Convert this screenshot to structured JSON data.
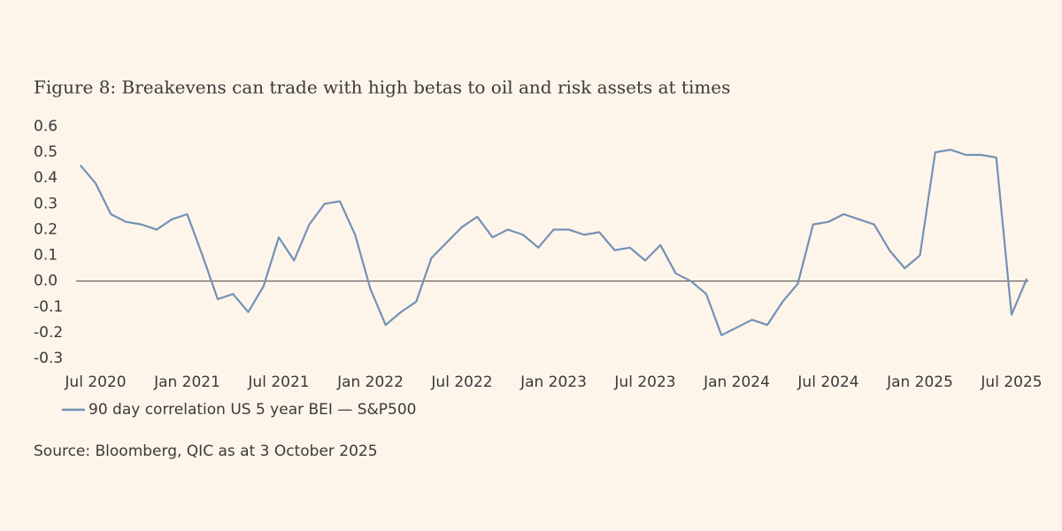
{
  "chart_data": {
    "type": "line",
    "title": "Figure 8: Breakevens can trade with high betas to oil and risk assets at times",
    "source": "Source: Bloomberg, QIC as at 3 October 2025",
    "x": [
      "2020-06",
      "2020-07",
      "2020-08",
      "2020-09",
      "2020-10",
      "2020-11",
      "2020-12",
      "2021-01",
      "2021-02",
      "2021-03",
      "2021-04",
      "2021-05",
      "2021-06",
      "2021-07",
      "2021-08",
      "2021-09",
      "2021-10",
      "2021-11",
      "2021-12",
      "2022-01",
      "2022-02",
      "2022-03",
      "2022-04",
      "2022-05",
      "2022-06",
      "2022-07",
      "2022-08",
      "2022-09",
      "2022-10",
      "2022-11",
      "2022-12",
      "2023-01",
      "2023-02",
      "2023-03",
      "2023-04",
      "2023-05",
      "2023-06",
      "2023-07",
      "2023-08",
      "2023-09",
      "2023-10",
      "2023-11",
      "2023-12",
      "2024-01",
      "2024-02",
      "2024-03",
      "2024-04",
      "2024-05",
      "2024-06",
      "2024-07",
      "2024-08",
      "2024-09",
      "2024-10",
      "2024-11",
      "2024-12",
      "2025-01",
      "2025-02",
      "2025-03",
      "2025-04",
      "2025-05",
      "2025-06",
      "2025-07",
      "2025-08"
    ],
    "series": [
      {
        "name": "90 day correlation US 5 year BEI — S&P500",
        "color": "#7391b5",
        "values": [
          0.45,
          0.38,
          0.26,
          0.23,
          0.22,
          0.2,
          0.24,
          0.26,
          0.1,
          -0.07,
          -0.05,
          -0.12,
          -0.02,
          0.17,
          0.08,
          0.22,
          0.3,
          0.31,
          0.18,
          -0.03,
          -0.17,
          -0.12,
          -0.08,
          0.09,
          0.15,
          0.21,
          0.25,
          0.17,
          0.2,
          0.18,
          0.13,
          0.2,
          0.2,
          0.18,
          0.19,
          0.12,
          0.13,
          0.08,
          0.14,
          0.03,
          0.0,
          -0.05,
          -0.21,
          -0.18,
          -0.15,
          -0.17,
          -0.08,
          -0.01,
          0.22,
          0.23,
          0.26,
          0.24,
          0.22,
          0.12,
          0.05,
          0.1,
          0.5,
          0.51,
          0.49,
          0.49,
          0.48,
          -0.13,
          0.01
        ]
      }
    ],
    "xlim": [
      "2020-06",
      "2025-08"
    ],
    "xticks": [
      {
        "value": "2020-07",
        "label": "Jul 2020"
      },
      {
        "value": "2021-01",
        "label": "Jan 2021"
      },
      {
        "value": "2021-07",
        "label": "Jul 2021"
      },
      {
        "value": "2022-01",
        "label": "Jan 2022"
      },
      {
        "value": "2022-07",
        "label": "Jul 2022"
      },
      {
        "value": "2023-01",
        "label": "Jan 2023"
      },
      {
        "value": "2023-07",
        "label": "Jul 2023"
      },
      {
        "value": "2024-01",
        "label": "Jan 2024"
      },
      {
        "value": "2024-07",
        "label": "Jul 2024"
      },
      {
        "value": "2025-01",
        "label": "Jan 2025"
      },
      {
        "value": "2025-07",
        "label": "Jul 2025"
      }
    ],
    "ylim": [
      -0.3,
      0.6
    ],
    "yticks": [
      0.6,
      0.5,
      0.4,
      0.3,
      0.2,
      0.1,
      {
        "value": 0,
        "label": "0.0"
      },
      -0.1,
      -0.2,
      -0.3
    ],
    "grid": false,
    "legend": "bottom-left"
  }
}
